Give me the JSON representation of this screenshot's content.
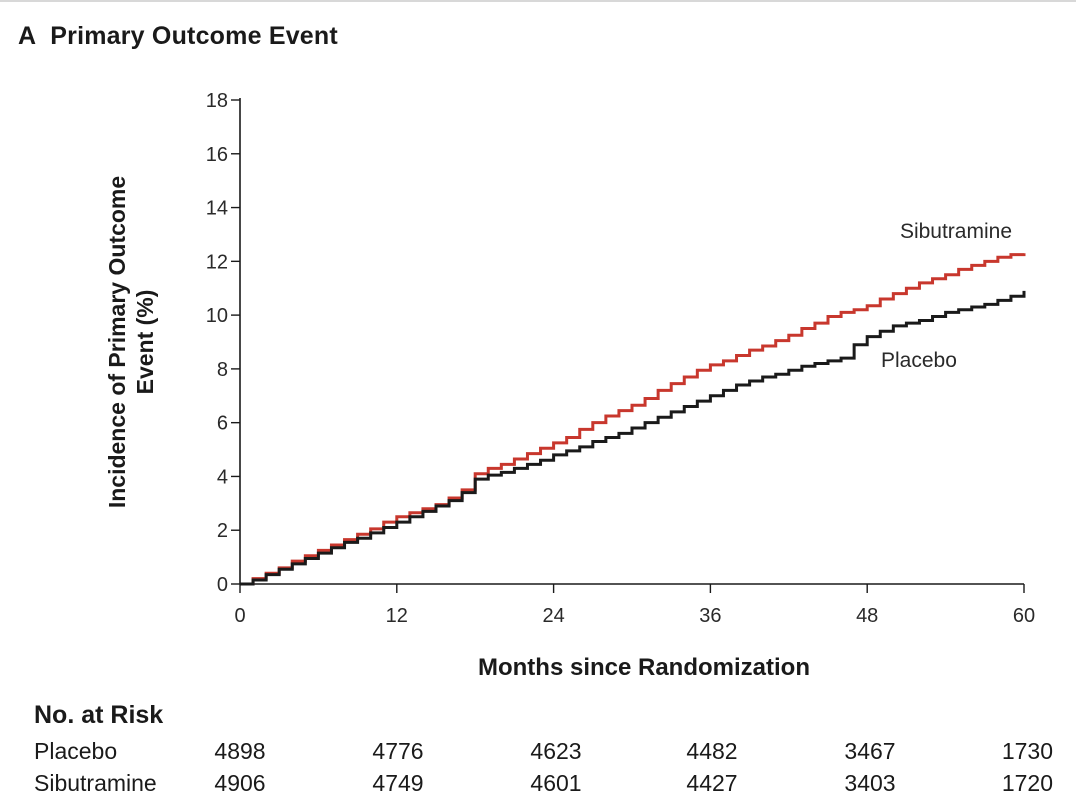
{
  "panel": {
    "letter": "A",
    "title": "Primary Outcome Event"
  },
  "chart_data": {
    "type": "line",
    "step": true,
    "title": "Primary Outcome Event",
    "xlabel": "Months since Randomization",
    "ylabel": "Incidence of Primary Outcome Event (%)",
    "ylabel_lines": [
      "Incidence of Primary Outcome",
      "Event (%)"
    ],
    "xlim": [
      0,
      60
    ],
    "ylim": [
      0,
      18
    ],
    "xticks": [
      0,
      12,
      24,
      36,
      48,
      60
    ],
    "yticks": [
      0,
      2,
      4,
      6,
      8,
      10,
      12,
      14,
      16,
      18
    ],
    "grid": false,
    "colors": {
      "Sibutramine": "#c8372d",
      "Placebo": "#1a1a1a"
    },
    "series": [
      {
        "name": "Sibutramine",
        "x": [
          0,
          1,
          2,
          3,
          4,
          5,
          6,
          7,
          8,
          9,
          10,
          11,
          12,
          13,
          14,
          15,
          16,
          17,
          18,
          19,
          20,
          21,
          22,
          23,
          24,
          25,
          26,
          27,
          28,
          29,
          30,
          31,
          32,
          33,
          34,
          35,
          36,
          37,
          38,
          39,
          40,
          41,
          42,
          43,
          44,
          45,
          46,
          47,
          48,
          49,
          50,
          51,
          52,
          53,
          54,
          55,
          56,
          57,
          58,
          59,
          60
        ],
        "y": [
          0,
          0.2,
          0.4,
          0.6,
          0.85,
          1.05,
          1.25,
          1.45,
          1.65,
          1.85,
          2.05,
          2.3,
          2.5,
          2.65,
          2.8,
          2.95,
          3.2,
          3.5,
          4.1,
          4.3,
          4.45,
          4.65,
          4.85,
          5.05,
          5.25,
          5.45,
          5.75,
          6.0,
          6.25,
          6.45,
          6.65,
          6.9,
          7.2,
          7.45,
          7.7,
          7.95,
          8.15,
          8.3,
          8.5,
          8.7,
          8.85,
          9.05,
          9.25,
          9.5,
          9.7,
          9.95,
          10.1,
          10.2,
          10.35,
          10.6,
          10.8,
          11.0,
          11.2,
          11.35,
          11.5,
          11.7,
          11.85,
          12.0,
          12.15,
          12.25,
          12.3
        ]
      },
      {
        "name": "Placebo",
        "x": [
          0,
          1,
          2,
          3,
          4,
          5,
          6,
          7,
          8,
          9,
          10,
          11,
          12,
          13,
          14,
          15,
          16,
          17,
          18,
          19,
          20,
          21,
          22,
          23,
          24,
          25,
          26,
          27,
          28,
          29,
          30,
          31,
          32,
          33,
          34,
          35,
          36,
          37,
          38,
          39,
          40,
          41,
          42,
          43,
          44,
          45,
          46,
          47,
          48,
          49,
          50,
          51,
          52,
          53,
          54,
          55,
          56,
          57,
          58,
          59,
          60
        ],
        "y": [
          0,
          0.15,
          0.35,
          0.55,
          0.75,
          0.95,
          1.15,
          1.35,
          1.55,
          1.7,
          1.9,
          2.1,
          2.3,
          2.5,
          2.7,
          2.9,
          3.1,
          3.4,
          3.9,
          4.05,
          4.15,
          4.3,
          4.45,
          4.6,
          4.8,
          4.95,
          5.1,
          5.3,
          5.45,
          5.6,
          5.8,
          6.0,
          6.2,
          6.4,
          6.6,
          6.8,
          7.0,
          7.2,
          7.4,
          7.55,
          7.7,
          7.8,
          7.95,
          8.1,
          8.2,
          8.3,
          8.4,
          8.9,
          9.2,
          9.4,
          9.6,
          9.7,
          9.8,
          9.95,
          10.1,
          10.2,
          10.3,
          10.4,
          10.55,
          10.7,
          10.9
        ]
      }
    ],
    "annotations": [
      {
        "text": "Sibutramine",
        "series": "Sibutramine"
      },
      {
        "text": "Placebo",
        "series": "Placebo"
      }
    ]
  },
  "risk_table": {
    "title": "No. at Risk",
    "months": [
      0,
      12,
      24,
      36,
      48,
      60
    ],
    "rows": [
      {
        "label": "Placebo",
        "values": [
          "4898",
          "4776",
          "4623",
          "4482",
          "3467",
          "1730"
        ]
      },
      {
        "label": "Sibutramine",
        "values": [
          "4906",
          "4749",
          "4601",
          "4427",
          "3403",
          "1720"
        ]
      }
    ]
  }
}
